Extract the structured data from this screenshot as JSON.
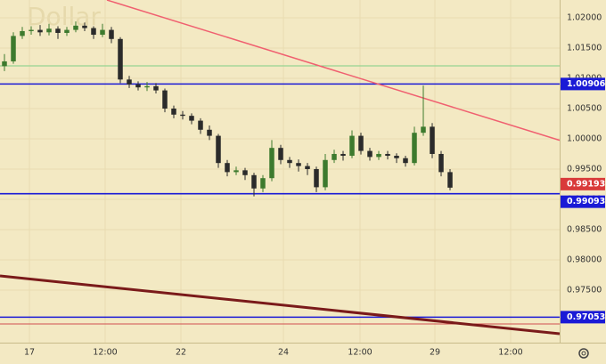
{
  "chart_data": {
    "type": "candlestick",
    "watermark": "Dollar",
    "x": [
      0.5,
      1.5,
      2.5,
      3.5,
      4.5,
      5.5,
      6.5,
      7.5,
      8.5,
      9.5,
      10.5,
      11.5,
      12.5,
      13.5,
      14.5,
      15.5,
      16.5,
      17.5,
      18.5,
      19.5,
      20.5,
      21.5,
      22.5,
      23.5,
      24.5,
      25.5,
      26.5,
      27.5,
      28.5,
      29.5,
      30.5,
      31.5,
      32.5,
      33.5,
      34.5,
      35.5,
      36.5,
      37.5,
      38.5,
      39.5,
      40.5,
      41.5,
      42.5,
      43.5,
      44.5,
      45.5,
      46.5,
      47.5,
      48.5,
      49.5,
      50.5
    ],
    "open": [
      1.012,
      1.0128,
      1.017,
      1.0178,
      1.018,
      1.0176,
      1.0182,
      1.0175,
      1.018,
      1.0187,
      1.0183,
      1.0172,
      1.018,
      1.0165,
      1.0098,
      1.009,
      1.0085,
      1.0087,
      1.008,
      1.005,
      1.004,
      1.0038,
      1.003,
      1.0015,
      1.0005,
      0.996,
      0.9945,
      0.9948,
      0.994,
      0.9918,
      0.9935,
      0.9985,
      0.9965,
      0.996,
      0.9955,
      0.995,
      0.992,
      0.9965,
      0.9975,
      0.9972,
      1.0005,
      0.998,
      0.997,
      0.9975,
      0.9972,
      0.9968,
      0.996,
      1.001,
      1.002,
      0.9975,
      0.9945
    ],
    "high": [
      1.014,
      1.0176,
      1.0185,
      1.0186,
      1.0188,
      1.019,
      1.0186,
      1.0185,
      1.0194,
      1.0192,
      1.0186,
      1.019,
      1.0185,
      1.0168,
      1.0104,
      1.0095,
      1.0094,
      1.0092,
      1.0083,
      1.0055,
      1.0046,
      1.0042,
      1.0034,
      1.0022,
      1.0008,
      0.9965,
      0.9954,
      0.9952,
      0.9944,
      0.994,
      0.9998,
      0.999,
      0.997,
      0.9966,
      0.996,
      0.9954,
      0.9975,
      0.9982,
      0.998,
      1.0014,
      1.001,
      0.9985,
      0.998,
      0.998,
      0.9976,
      0.9972,
      1.002,
      1.0088,
      1.0026,
      0.998,
      0.995
    ],
    "low": [
      1.0112,
      1.0124,
      1.0165,
      1.0172,
      1.017,
      1.0171,
      1.0165,
      1.017,
      1.0176,
      1.0178,
      1.0165,
      1.0168,
      1.0158,
      1.0092,
      1.0084,
      1.008,
      1.0079,
      1.0075,
      1.0044,
      1.0034,
      1.0032,
      1.0024,
      1.0008,
      0.9998,
      0.9952,
      0.9938,
      0.994,
      0.9932,
      0.9905,
      0.9912,
      0.993,
      0.9958,
      0.9952,
      0.9946,
      0.994,
      0.9912,
      0.9915,
      0.996,
      0.9964,
      0.9968,
      0.9974,
      0.9964,
      0.9965,
      0.9966,
      0.996,
      0.9954,
      0.9956,
      1.0005,
      0.9968,
      0.9938,
      0.9915
    ],
    "close": [
      1.0128,
      1.017,
      1.0178,
      1.018,
      1.0176,
      1.0182,
      1.0175,
      1.018,
      1.0187,
      1.0183,
      1.0172,
      1.018,
      1.0165,
      1.0098,
      1.009,
      1.0085,
      1.0087,
      1.008,
      1.005,
      1.004,
      1.0038,
      1.003,
      1.0015,
      1.0005,
      0.996,
      0.9945,
      0.9948,
      0.994,
      0.9918,
      0.9935,
      0.9985,
      0.9965,
      0.996,
      0.9955,
      0.995,
      0.992,
      0.9965,
      0.9975,
      0.9972,
      1.0005,
      0.998,
      0.997,
      0.9975,
      0.9972,
      0.9968,
      0.996,
      1.001,
      1.002,
      0.9975,
      0.9945,
      0.99193
    ],
    "up_color": "#3d7a2e",
    "down_color": "#2b2b2b",
    "xlim": [
      0,
      62.8
    ],
    "ylim": [
      0.96632,
      1.02294
    ],
    "xticks": [
      {
        "value": 3.3,
        "label": "17"
      },
      {
        "value": 11.8,
        "label": "12:00"
      },
      {
        "value": 20.3,
        "label": "22"
      },
      {
        "value": 31.8,
        "label": "24"
      },
      {
        "value": 40.4,
        "label": "12:00"
      },
      {
        "value": 48.8,
        "label": "29"
      },
      {
        "value": 57.3,
        "label": "12:00"
      }
    ],
    "yticks": [
      {
        "value": 0.975,
        "label": "0.97500"
      },
      {
        "value": 0.98,
        "label": "0.98000"
      },
      {
        "value": 0.985,
        "label": "0.98500"
      },
      {
        "value": 0.99,
        "label": "0.99000"
      },
      {
        "value": 0.995,
        "label": "0.99500"
      },
      {
        "value": 1.0,
        "label": "1.00000"
      },
      {
        "value": 1.005,
        "label": "1.00500"
      },
      {
        "value": 1.01,
        "label": "1.01000"
      },
      {
        "value": 1.015,
        "label": "1.01500"
      },
      {
        "value": 1.02,
        "label": "1.02000"
      }
    ],
    "grid": true,
    "levels": [
      {
        "value": 1.00906,
        "color": "#1a1ad6"
      },
      {
        "value": 0.99093,
        "color": "#1a1ad6"
      },
      {
        "value": 0.97053,
        "color": "#1a1ad6"
      }
    ],
    "plain_levels": [
      {
        "value": 1.01206,
        "color": "#7fcf86"
      },
      {
        "value": 0.9694,
        "color": "#d05050"
      }
    ],
    "last_price_color": "#d93a3a",
    "trendlines": [
      {
        "points": [
          [
            12.0,
            1.02294
          ],
          [
            62.8,
            0.99976
          ]
        ],
        "color": "#f06070",
        "width": 1.5
      },
      {
        "points": [
          [
            0,
            0.97735
          ],
          [
            62.8,
            0.96779
          ]
        ],
        "color": "#7a1a1a",
        "width": 3
      }
    ]
  }
}
